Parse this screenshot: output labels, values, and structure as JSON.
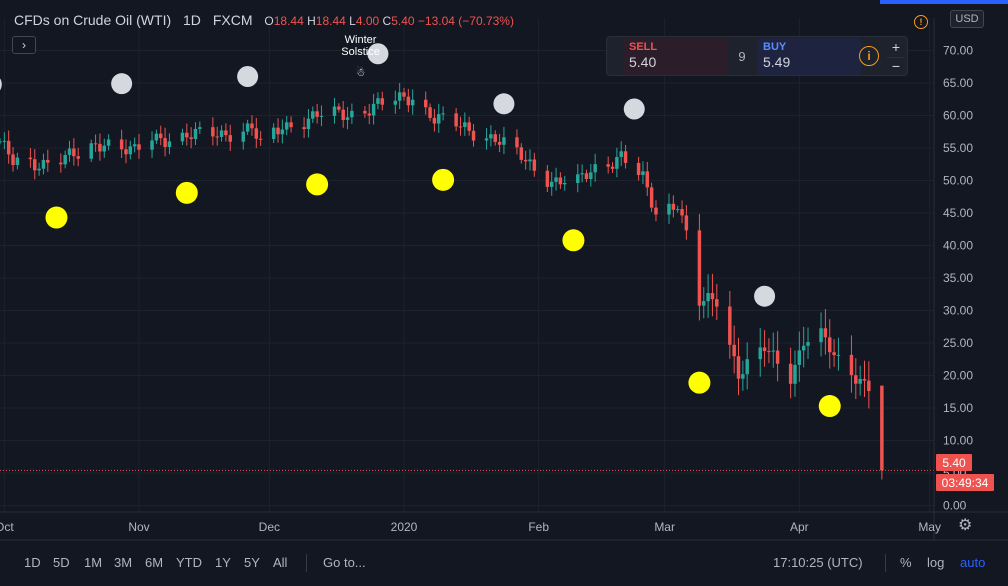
{
  "header": {
    "symbol_title": "CFDs on Crude Oil (WTI)",
    "interval": "1D",
    "exchange": "FXCM",
    "ohlc": [
      {
        "key": "O",
        "value": "18.44"
      },
      {
        "key": "H",
        "value": "18.44"
      },
      {
        "key": "L",
        "value": "4.00"
      },
      {
        "key": "C",
        "value": "5.40"
      }
    ],
    "change": "−13.04 (−70.73%)",
    "currency": "USD"
  },
  "trade_panel": {
    "sell_label": "SELL",
    "sell_price": "5.40",
    "spread": "9",
    "buy_label": "BUY",
    "buy_price": "5.49",
    "plus": "+",
    "minus": "−"
  },
  "price_labels": {
    "last_price": "5.40",
    "countdown": "03:49:34",
    "last_color": "#ef5350"
  },
  "annotation": {
    "text_line1": "Winter",
    "text_line2": "Solstice",
    "glyph": "☃"
  },
  "bottom_bar": {
    "ranges": [
      "1D",
      "5D",
      "1M",
      "3M",
      "6M",
      "YTD",
      "1Y",
      "5Y",
      "All"
    ],
    "goto": "Go to...",
    "clock": "17:10:25 (UTC)",
    "percent": "%",
    "log": "log",
    "auto": "auto"
  },
  "chart_data": {
    "type": "candlestick",
    "title": "CFDs on Crude Oil (WTI)",
    "ylim": [
      -1,
      75
    ],
    "y_ticks": [
      0,
      5,
      10,
      15,
      20,
      25,
      30,
      35,
      40,
      45,
      50,
      55,
      60,
      65,
      70
    ],
    "x_tick_labels": [
      "Oct",
      "Nov",
      "Dec",
      "2020",
      "Feb",
      "Mar",
      "Apr",
      "May"
    ],
    "x_tick_dates": [
      "2019-10-01",
      "2019-11-01",
      "2019-12-01",
      "2020-01-01",
      "2020-02-01",
      "2020-03-01",
      "2020-04-01",
      "2020-05-01"
    ],
    "xlim": [
      "2019-09-30",
      "2020-05-02"
    ],
    "grid": true,
    "up_color": "#26a69a",
    "down_color": "#ef5350",
    "close_anchors": [
      [
        "2019-09-30",
        56.0
      ],
      [
        "2019-10-03",
        52.6
      ],
      [
        "2019-10-08",
        52.6
      ],
      [
        "2019-10-14",
        53.5
      ],
      [
        "2019-10-18",
        53.6
      ],
      [
        "2019-10-24",
        56.2
      ],
      [
        "2019-10-31",
        54.2
      ],
      [
        "2019-11-04",
        56.5
      ],
      [
        "2019-11-12",
        56.8
      ],
      [
        "2019-11-20",
        57.2
      ],
      [
        "2019-11-27",
        58.1
      ],
      [
        "2019-11-29",
        55.2
      ],
      [
        "2019-12-04",
        58.4
      ],
      [
        "2019-12-13",
        60.0
      ],
      [
        "2019-12-20",
        60.4
      ],
      [
        "2019-12-27",
        61.7
      ],
      [
        "2020-01-03",
        63.0
      ],
      [
        "2020-01-08",
        59.6
      ],
      [
        "2020-01-15",
        58.0
      ],
      [
        "2020-01-22",
        56.5
      ],
      [
        "2020-01-28",
        53.5
      ],
      [
        "2020-02-04",
        50.0
      ],
      [
        "2020-02-10",
        49.6
      ],
      [
        "2020-02-14",
        52.0
      ],
      [
        "2020-02-20",
        53.8
      ],
      [
        "2020-02-25",
        50.0
      ],
      [
        "2020-02-28",
        45.0
      ],
      [
        "2020-03-04",
        46.8
      ],
      [
        "2020-03-06",
        41.5
      ],
      [
        "2020-03-09",
        31.0
      ],
      [
        "2020-03-13",
        31.7
      ],
      [
        "2020-03-18",
        20.5
      ],
      [
        "2020-03-24",
        24.0
      ],
      [
        "2020-03-30",
        20.0
      ],
      [
        "2020-04-02",
        25.5
      ],
      [
        "2020-04-06",
        26.1
      ],
      [
        "2020-04-09",
        22.8
      ],
      [
        "2020-04-14",
        20.1
      ],
      [
        "2020-04-17",
        18.4
      ],
      [
        "2020-04-20",
        5.4
      ]
    ],
    "last_bar": {
      "date": "2020-04-20",
      "open": 18.44,
      "high": 18.44,
      "low": 4.0,
      "close": 5.4
    },
    "full_moon_dates": [
      "2019-10-13",
      "2019-11-12",
      "2019-12-12",
      "2020-01-10",
      "2020-02-09",
      "2020-03-09",
      "2020-04-08"
    ],
    "full_moon_levels": [
      44.3,
      48.1,
      49.4,
      50.1,
      40.8,
      18.9,
      15.3
    ],
    "new_moon_dates": [
      "2019-09-28",
      "2019-10-28",
      "2019-11-26",
      "2019-12-26",
      "2020-01-24",
      "2020-02-23",
      "2020-03-24"
    ],
    "new_moon_levels": [
      64.8,
      64.9,
      66.0,
      69.5,
      61.8,
      61.0,
      32.2
    ],
    "event_date": "2019-12-22"
  }
}
